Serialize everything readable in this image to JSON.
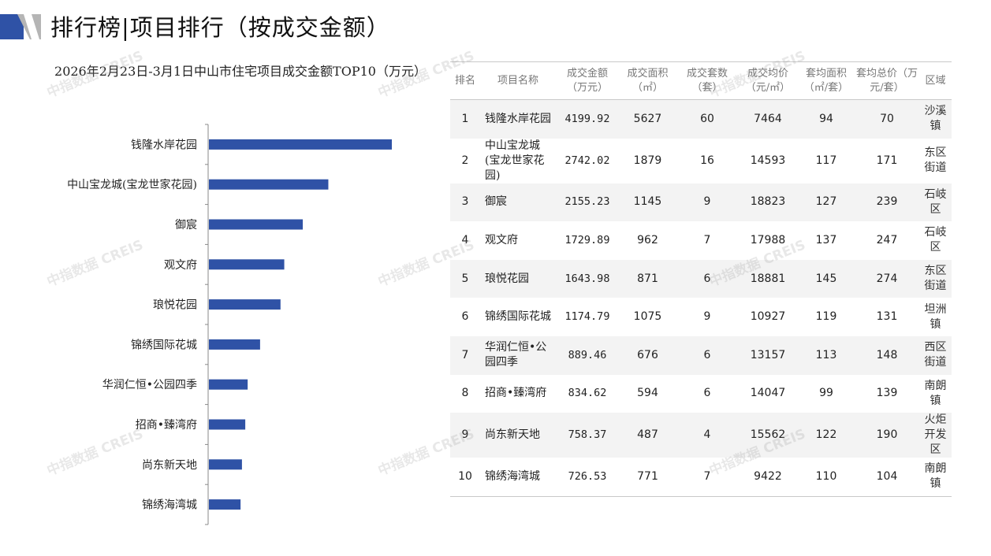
{
  "page": {
    "title": "排行榜|项目排行（按成交金额）",
    "watermark": "中指数据 CREIS",
    "accent": "#2f52a6"
  },
  "chart_data": {
    "type": "bar",
    "orientation": "horizontal",
    "title": "2026年2月23日-3月1日中山市住宅项目成交金额TOP10（万元）",
    "categories": [
      "钱隆水岸花园",
      "中山宝龙城(宝龙世家花园)",
      "御宸",
      "观文府",
      "琅悦花园",
      "锦绣国际花城",
      "华润仁恒•公园四季",
      "招商•臻湾府",
      "尚东新天地",
      "锦绣海湾城"
    ],
    "series": [
      {
        "values": [
          4199.92,
          2742.02,
          2155.23,
          1729.89,
          1643.98,
          1174.79,
          889.46,
          834.62,
          758.37,
          726.53
        ]
      }
    ],
    "xlim": [
      0,
      5000
    ],
    "bar_color": "#2f52a6",
    "grid": false,
    "legend": "none"
  },
  "table": {
    "headers": [
      "排名",
      "项目名称",
      "成交金额（万元）",
      "成交面积（㎡）",
      "成交套数（套）",
      "成交均价（元/㎡）",
      "套均面积（㎡/套）",
      "套均总价（万元/套）",
      "区域"
    ],
    "rows": [
      [
        "1",
        "钱隆水岸花园",
        "4199.92",
        "5627",
        "60",
        "7464",
        "94",
        "70",
        "沙溪镇"
      ],
      [
        "2",
        "中山宝龙城(宝龙世家花园)",
        "2742.02",
        "1879",
        "16",
        "14593",
        "117",
        "171",
        "东区街道"
      ],
      [
        "3",
        "御宸",
        "2155.23",
        "1145",
        "9",
        "18823",
        "127",
        "239",
        "石岐区"
      ],
      [
        "4",
        "观文府",
        "1729.89",
        "962",
        "7",
        "17988",
        "137",
        "247",
        "石岐区"
      ],
      [
        "5",
        "琅悦花园",
        "1643.98",
        "871",
        "6",
        "18881",
        "145",
        "274",
        "东区街道"
      ],
      [
        "6",
        "锦绣国际花城",
        "1174.79",
        "1075",
        "9",
        "10927",
        "119",
        "131",
        "坦洲镇"
      ],
      [
        "7",
        "华润仁恒•公园四季",
        "889.46",
        "676",
        "6",
        "13157",
        "113",
        "148",
        "西区街道"
      ],
      [
        "8",
        "招商•臻湾府",
        "834.62",
        "594",
        "6",
        "14047",
        "99",
        "139",
        "南朗镇"
      ],
      [
        "9",
        "尚东新天地",
        "758.37",
        "487",
        "4",
        "15562",
        "122",
        "190",
        "火炬开发区"
      ],
      [
        "10",
        "锦绣海湾城",
        "726.53",
        "771",
        "7",
        "9422",
        "110",
        "104",
        "南朗镇"
      ]
    ]
  }
}
